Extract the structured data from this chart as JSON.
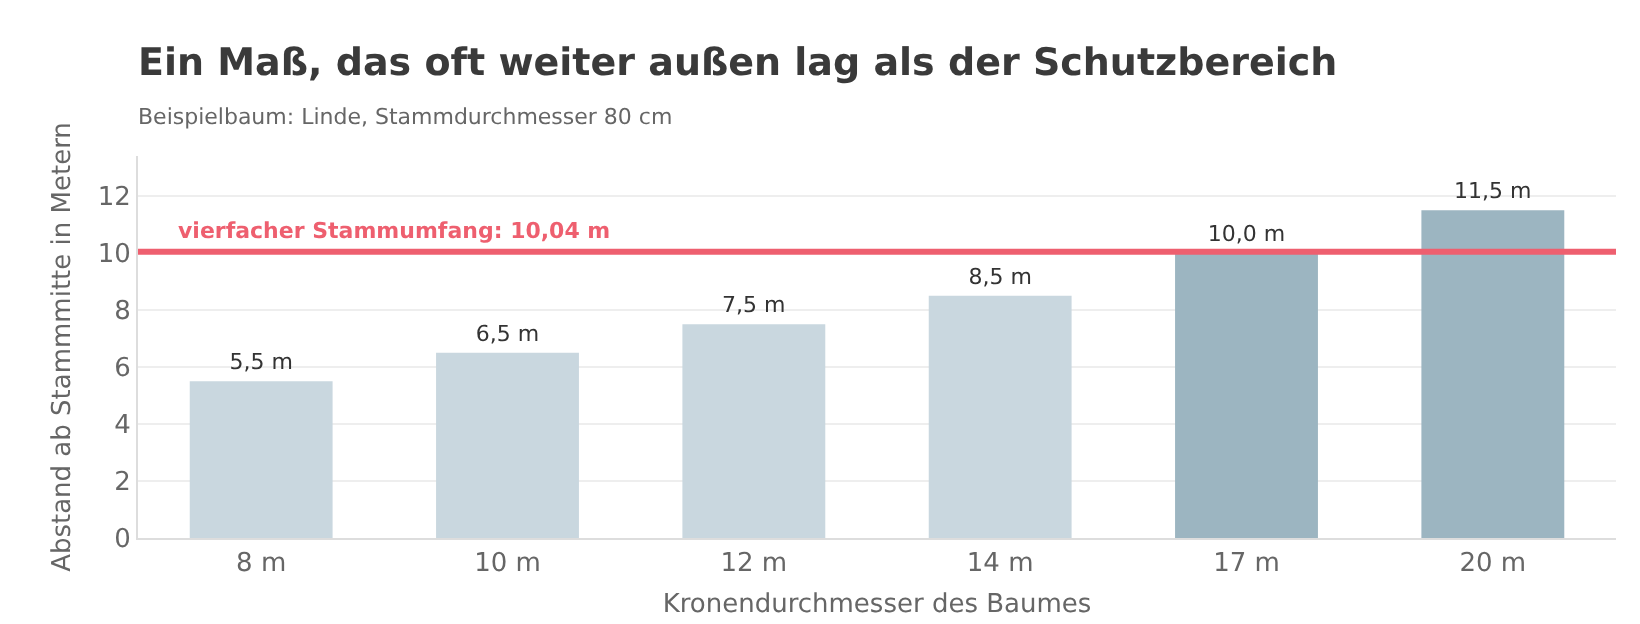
{
  "chart_data": {
    "type": "bar",
    "title": "Ein Maß, das oft weiter außen lag als der Schutzbereich",
    "subtitle": "Beispielbaum: Linde, Stammdurchmesser 80 cm",
    "xlabel": "Kronendurchmesser des Baumes",
    "ylabel": "Abstand ab Stammmitte in Metern",
    "categories": [
      "8 m",
      "10 m",
      "12 m",
      "14 m",
      "17 m",
      "20 m"
    ],
    "values": [
      5.5,
      6.5,
      7.5,
      8.5,
      10.0,
      11.5
    ],
    "colors": [
      "#c9d7df",
      "#c9d7df",
      "#c9d7df",
      "#c9d7df",
      "#9cb5c1",
      "#9cb5c1"
    ],
    "value_labels": [
      "5,5 m",
      "6,5 m",
      "7,5 m",
      "8,5 m",
      "10,0 m",
      "11,5 m"
    ],
    "ylim": [
      0,
      13.4
    ],
    "yticks": [
      0,
      2,
      4,
      6,
      8,
      10,
      12
    ],
    "grid": "y",
    "ref_lines": [
      {
        "axis": "y",
        "value": 10.04,
        "label": "vierfacher Stammumfang: 10,04 m",
        "color": "#ee5f6f"
      }
    ]
  }
}
